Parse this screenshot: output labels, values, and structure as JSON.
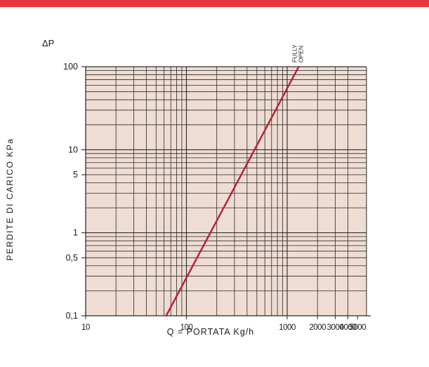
{
  "colors": {
    "top_bar": "#e8383b",
    "plot_background": "#efdcd3",
    "grid": "#2a2a2a",
    "curve": "#b81d33",
    "text": "#1a1a1a"
  },
  "chart_data": {
    "type": "line",
    "x_scale": "log",
    "y_scale": "log",
    "xlim": [
      10,
      5000
    ],
    "ylim": [
      0.1,
      100
    ],
    "x_tick_labels": [
      {
        "value": 10,
        "label": "10"
      },
      {
        "value": 100,
        "label": "100"
      },
      {
        "value": 1000,
        "label": "1000"
      },
      {
        "value": 2000,
        "label": "2000"
      },
      {
        "value": 3000,
        "label": "3000"
      },
      {
        "value": 4000,
        "label": "4000"
      },
      {
        "value": 5000,
        "label": "5000"
      }
    ],
    "y_tick_labels": [
      {
        "value": 0.1,
        "label": "0,1"
      },
      {
        "value": 0.5,
        "label": "0,5"
      },
      {
        "value": 1,
        "label": "1"
      },
      {
        "value": 5,
        "label": "5"
      },
      {
        "value": 10,
        "label": "10"
      },
      {
        "value": 100,
        "label": "100"
      }
    ],
    "x_minor_grid": [
      20,
      30,
      40,
      50,
      60,
      70,
      80,
      90,
      200,
      300,
      400,
      500,
      600,
      700,
      800,
      900,
      2000,
      3000,
      4000
    ],
    "y_minor_grid": [
      0.2,
      0.3,
      0.4,
      0.5,
      0.6,
      0.7,
      0.8,
      0.9,
      2,
      3,
      4,
      5,
      6,
      7,
      8,
      9,
      20,
      30,
      40,
      50,
      60,
      70,
      80,
      90
    ],
    "grid": true,
    "ylabel": "PERDITE DI CARICO KPa",
    "xlabel": "Q = PORTATA Kg/h",
    "y_unit_label": "ΔP",
    "series": [
      {
        "name": "FULLY OPEN",
        "x": [
          63,
          1300
        ],
        "y": [
          0.1,
          100
        ]
      }
    ],
    "annotations": [
      {
        "text": "FULLY OPEN",
        "x": 1300,
        "y": 100
      }
    ]
  }
}
